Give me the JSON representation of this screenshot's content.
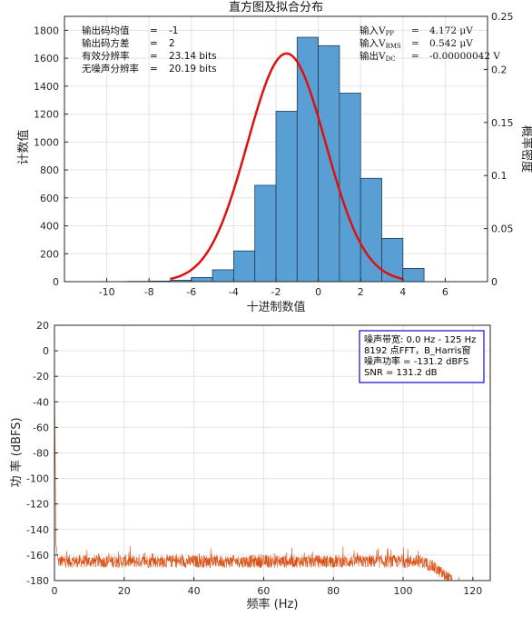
{
  "chart_data": [
    {
      "type": "bar",
      "title": "直方图及拟合分布",
      "xlabel": "十进制数值",
      "ylabel": "计数值",
      "y2label": "概率密度",
      "xlim": [
        -12,
        8
      ],
      "ylim": [
        0,
        1900
      ],
      "y2lim": [
        0,
        0.25
      ],
      "xticks": [
        -10,
        -8,
        -6,
        -4,
        -2,
        0,
        2,
        4,
        6
      ],
      "yticks": [
        0,
        200,
        400,
        600,
        800,
        1000,
        1200,
        1400,
        1600,
        1800
      ],
      "y2ticks": [
        0,
        0.05,
        0.1,
        0.15,
        0.2,
        0.25
      ],
      "y2ticklabels": [
        "0",
        "0.05",
        "0.1",
        "0.15",
        "0.2",
        "0.25"
      ],
      "grid": true,
      "bar_color": "#5a9fd4",
      "bar_edge_color": "#1f3a55",
      "fit_color": "#e01010",
      "bins": {
        "edges": [
          -10,
          -9,
          -8,
          -7,
          -6,
          -5,
          -4,
          -3,
          -2,
          -1,
          0,
          1,
          2,
          3,
          4,
          5
        ],
        "counts": [
          0,
          2,
          4,
          10,
          30,
          85,
          220,
          690,
          1220,
          1750,
          1690,
          1350,
          740,
          310,
          95,
          25
        ]
      },
      "fit": {
        "mean": -1.5,
        "std": 1.85,
        "peak_density": 0.215,
        "x_range": [
          -7,
          4
        ]
      },
      "stats_left": [
        {
          "label": "输出码均值",
          "eq": "=",
          "value": "-1"
        },
        {
          "label": "输出码方差",
          "eq": "=",
          "value": "2"
        },
        {
          "label": "有效分辨率",
          "eq": "=",
          "value": "23.14 bits"
        },
        {
          "label": "无噪声分辨率",
          "eq": "=",
          "value": "20.19 bits"
        }
      ],
      "stats_right": [
        {
          "label": "输入V",
          "sub": "PP",
          "eq": "=",
          "value": "4.172 μV"
        },
        {
          "label": "输入V",
          "sub": "RMS",
          "eq": "=",
          "value": "0.542 μV"
        },
        {
          "label": "输出V",
          "sub": "DC",
          "eq": "=",
          "value": "-0.00000042 V"
        }
      ]
    },
    {
      "type": "line",
      "xlabel": "频率 (Hz)",
      "ylabel": "功 率 (dBFS)",
      "xlim": [
        0,
        125
      ],
      "ylim": [
        -180,
        20
      ],
      "xticks": [
        0,
        20,
        40,
        60,
        80,
        100,
        120
      ],
      "yticks": [
        20,
        0,
        -20,
        -40,
        -60,
        -80,
        -100,
        -120,
        -140,
        -160,
        -180
      ],
      "grid": true,
      "line_color": "#d95319",
      "series_profile": [
        {
          "f": 0,
          "db": -17
        },
        {
          "f": 0.4,
          "db": -150
        },
        {
          "f": 1,
          "db": -165
        },
        {
          "f": 60,
          "db": -165
        },
        {
          "f": 105,
          "db": -165
        },
        {
          "f": 108,
          "db": -168
        },
        {
          "f": 110,
          "db": -172
        },
        {
          "f": 112,
          "db": -176
        },
        {
          "f": 114,
          "db": -180
        }
      ],
      "noise_spread_db": 10,
      "info_box": {
        "lines": [
          "噪声带宽:  0.0 Hz -  125 Hz",
          "8192 点FFT，B_Harris窗",
          "噪声功率 = -131.2 dBFS",
          "SNR = 131.2 dB"
        ],
        "border_color": "#1d1dcf"
      }
    }
  ]
}
